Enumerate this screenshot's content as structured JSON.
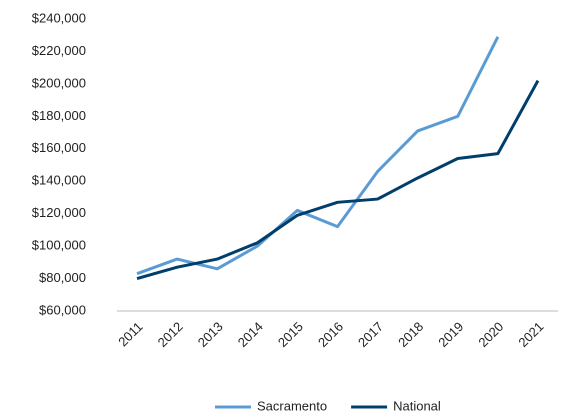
{
  "chart_data": {
    "type": "line",
    "categories": [
      "2011",
      "2012",
      "2013",
      "2014",
      "2015",
      "2016",
      "2017",
      "2018",
      "2019",
      "2020",
      "2021"
    ],
    "series": [
      {
        "name": "Sacramento",
        "color": "#5b9bd5",
        "values": [
          83000,
          92000,
          86000,
          100000,
          122000,
          112000,
          146000,
          171000,
          180000,
          229000,
          null
        ]
      },
      {
        "name": "National",
        "color": "#003e6b",
        "values": [
          80000,
          87000,
          92000,
          102000,
          119000,
          127000,
          129000,
          142000,
          154000,
          157000,
          202000
        ]
      }
    ],
    "ylim": [
      60000,
      240000
    ],
    "yticks": [
      {
        "value": 60000,
        "label": "$60,000"
      },
      {
        "value": 80000,
        "label": "$80,000"
      },
      {
        "value": 100000,
        "label": "$100,000"
      },
      {
        "value": 120000,
        "label": "$120,000"
      },
      {
        "value": 140000,
        "label": "$140,000"
      },
      {
        "value": 160000,
        "label": "$160,000"
      },
      {
        "value": 180000,
        "label": "$180,000"
      },
      {
        "value": 200000,
        "label": "$200,000"
      },
      {
        "value": 220000,
        "label": "$220,000"
      },
      {
        "value": 240000,
        "label": "$240,000"
      }
    ],
    "grid": false,
    "legend": "bottom"
  }
}
